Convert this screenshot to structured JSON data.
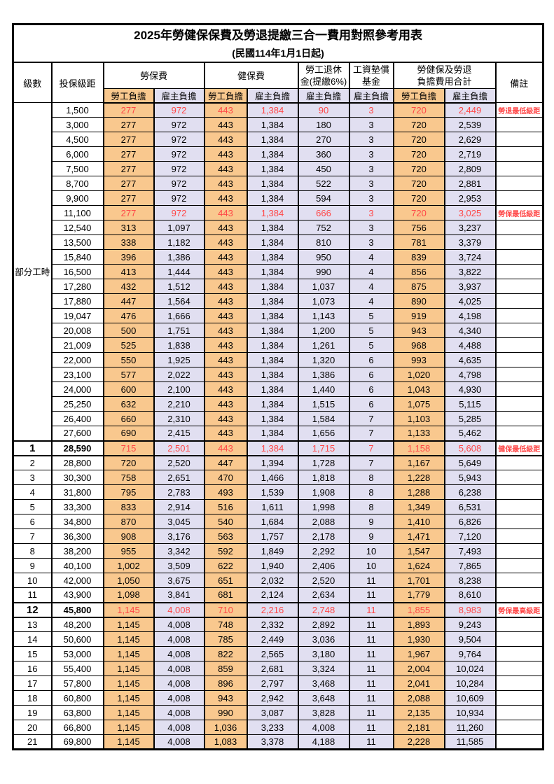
{
  "header": {
    "title": "2025年勞健保保費及勞退提繳三合一費用對照參考用表",
    "subtitle": "(民國114年1月1日起)"
  },
  "colors": {
    "employee_bg": "#F9C88E",
    "employer_bg": "#E1DFF1",
    "highlight_red": "#FF4747"
  },
  "table": {
    "columns": {
      "level": "級數",
      "bracket": "投保級距",
      "labor_fee": "勞保費",
      "health_fee": "健保費",
      "pension_line1": "勞工退休",
      "pension_line2": "金(提繳6%)",
      "wage_fund_line1": "工資墊償",
      "wage_fund_line2": "基金",
      "total_line1": "勞健保及勞退",
      "total_line2": "負擔費用合計",
      "note": "備註",
      "employee": "勞工負擔",
      "employer": "雇主負擔"
    },
    "part_time_label": "部分工時",
    "part_time_rowspan": 23,
    "rows": [
      {
        "level": "",
        "bracket": "1,500",
        "values": [
          "277",
          "972",
          "443",
          "1,384",
          "90",
          "3",
          "720",
          "2,449"
        ],
        "note": "勞退最低級距",
        "red": true
      },
      {
        "level": "",
        "bracket": "3,000",
        "values": [
          "277",
          "972",
          "443",
          "1,384",
          "180",
          "3",
          "720",
          "2,539"
        ]
      },
      {
        "level": "",
        "bracket": "4,500",
        "values": [
          "277",
          "972",
          "443",
          "1,384",
          "270",
          "3",
          "720",
          "2,629"
        ]
      },
      {
        "level": "",
        "bracket": "6,000",
        "values": [
          "277",
          "972",
          "443",
          "1,384",
          "360",
          "3",
          "720",
          "2,719"
        ]
      },
      {
        "level": "",
        "bracket": "7,500",
        "values": [
          "277",
          "972",
          "443",
          "1,384",
          "450",
          "3",
          "720",
          "2,809"
        ]
      },
      {
        "level": "",
        "bracket": "8,700",
        "values": [
          "277",
          "972",
          "443",
          "1,384",
          "522",
          "3",
          "720",
          "2,881"
        ]
      },
      {
        "level": "",
        "bracket": "9,900",
        "values": [
          "277",
          "972",
          "443",
          "1,384",
          "594",
          "3",
          "720",
          "2,953"
        ]
      },
      {
        "level": "",
        "bracket": "11,100",
        "values": [
          "277",
          "972",
          "443",
          "1,384",
          "666",
          "3",
          "720",
          "3,025"
        ],
        "note": "勞保最低級距",
        "red": true
      },
      {
        "level": "",
        "bracket": "12,540",
        "values": [
          "313",
          "1,097",
          "443",
          "1,384",
          "752",
          "3",
          "756",
          "3,237"
        ]
      },
      {
        "level": "",
        "bracket": "13,500",
        "values": [
          "338",
          "1,182",
          "443",
          "1,384",
          "810",
          "3",
          "781",
          "3,379"
        ]
      },
      {
        "level": "",
        "bracket": "15,840",
        "values": [
          "396",
          "1,386",
          "443",
          "1,384",
          "950",
          "4",
          "839",
          "3,724"
        ]
      },
      {
        "level": "",
        "bracket": "16,500",
        "values": [
          "413",
          "1,444",
          "443",
          "1,384",
          "990",
          "4",
          "856",
          "3,822"
        ]
      },
      {
        "level": "",
        "bracket": "17,280",
        "values": [
          "432",
          "1,512",
          "443",
          "1,384",
          "1,037",
          "4",
          "875",
          "3,937"
        ]
      },
      {
        "level": "",
        "bracket": "17,880",
        "values": [
          "447",
          "1,564",
          "443",
          "1,384",
          "1,073",
          "4",
          "890",
          "4,025"
        ]
      },
      {
        "level": "",
        "bracket": "19,047",
        "values": [
          "476",
          "1,666",
          "443",
          "1,384",
          "1,143",
          "5",
          "919",
          "4,198"
        ]
      },
      {
        "level": "",
        "bracket": "20,008",
        "values": [
          "500",
          "1,751",
          "443",
          "1,384",
          "1,200",
          "5",
          "943",
          "4,340"
        ]
      },
      {
        "level": "",
        "bracket": "21,009",
        "values": [
          "525",
          "1,838",
          "443",
          "1,384",
          "1,261",
          "5",
          "968",
          "4,488"
        ]
      },
      {
        "level": "",
        "bracket": "22,000",
        "values": [
          "550",
          "1,925",
          "443",
          "1,384",
          "1,320",
          "6",
          "993",
          "4,635"
        ]
      },
      {
        "level": "",
        "bracket": "23,100",
        "values": [
          "577",
          "2,022",
          "443",
          "1,384",
          "1,386",
          "6",
          "1,020",
          "4,798"
        ]
      },
      {
        "level": "",
        "bracket": "24,000",
        "values": [
          "600",
          "2,100",
          "443",
          "1,384",
          "1,440",
          "6",
          "1,043",
          "4,930"
        ]
      },
      {
        "level": "",
        "bracket": "25,250",
        "values": [
          "632",
          "2,210",
          "443",
          "1,384",
          "1,515",
          "6",
          "1,075",
          "5,115"
        ]
      },
      {
        "level": "",
        "bracket": "26,400",
        "values": [
          "660",
          "2,310",
          "443",
          "1,384",
          "1,584",
          "7",
          "1,103",
          "5,285"
        ]
      },
      {
        "level": "",
        "bracket": "27,600",
        "values": [
          "690",
          "2,415",
          "443",
          "1,384",
          "1,656",
          "7",
          "1,133",
          "5,462"
        ]
      },
      {
        "level": "1",
        "bracket": "28,590",
        "values": [
          "715",
          "2,501",
          "443",
          "1,384",
          "1,715",
          "7",
          "1,158",
          "5,608"
        ],
        "note": "健保最低級距",
        "red": true,
        "key": true
      },
      {
        "level": "2",
        "bracket": "28,800",
        "values": [
          "720",
          "2,520",
          "447",
          "1,394",
          "1,728",
          "7",
          "1,167",
          "5,649"
        ]
      },
      {
        "level": "3",
        "bracket": "30,300",
        "values": [
          "758",
          "2,651",
          "470",
          "1,466",
          "1,818",
          "8",
          "1,228",
          "5,943"
        ]
      },
      {
        "level": "4",
        "bracket": "31,800",
        "values": [
          "795",
          "2,783",
          "493",
          "1,539",
          "1,908",
          "8",
          "1,288",
          "6,238"
        ]
      },
      {
        "level": "5",
        "bracket": "33,300",
        "values": [
          "833",
          "2,914",
          "516",
          "1,611",
          "1,998",
          "8",
          "1,349",
          "6,531"
        ]
      },
      {
        "level": "6",
        "bracket": "34,800",
        "values": [
          "870",
          "3,045",
          "540",
          "1,684",
          "2,088",
          "9",
          "1,410",
          "6,826"
        ]
      },
      {
        "level": "7",
        "bracket": "36,300",
        "values": [
          "908",
          "3,176",
          "563",
          "1,757",
          "2,178",
          "9",
          "1,471",
          "7,120"
        ]
      },
      {
        "level": "8",
        "bracket": "38,200",
        "values": [
          "955",
          "3,342",
          "592",
          "1,849",
          "2,292",
          "10",
          "1,547",
          "7,493"
        ]
      },
      {
        "level": "9",
        "bracket": "40,100",
        "values": [
          "1,002",
          "3,509",
          "622",
          "1,940",
          "2,406",
          "10",
          "1,624",
          "7,865"
        ]
      },
      {
        "level": "10",
        "bracket": "42,000",
        "values": [
          "1,050",
          "3,675",
          "651",
          "2,032",
          "2,520",
          "11",
          "1,701",
          "8,238"
        ]
      },
      {
        "level": "11",
        "bracket": "43,900",
        "values": [
          "1,098",
          "3,841",
          "681",
          "2,124",
          "2,634",
          "11",
          "1,779",
          "8,610"
        ]
      },
      {
        "level": "12",
        "bracket": "45,800",
        "values": [
          "1,145",
          "4,008",
          "710",
          "2,216",
          "2,748",
          "11",
          "1,855",
          "8,983"
        ],
        "note": "勞保最高級距",
        "red": true,
        "key": true
      },
      {
        "level": "13",
        "bracket": "48,200",
        "values": [
          "1,145",
          "4,008",
          "748",
          "2,332",
          "2,892",
          "11",
          "1,893",
          "9,243"
        ]
      },
      {
        "level": "14",
        "bracket": "50,600",
        "values": [
          "1,145",
          "4,008",
          "785",
          "2,449",
          "3,036",
          "11",
          "1,930",
          "9,504"
        ]
      },
      {
        "level": "15",
        "bracket": "53,000",
        "values": [
          "1,145",
          "4,008",
          "822",
          "2,565",
          "3,180",
          "11",
          "1,967",
          "9,764"
        ]
      },
      {
        "level": "16",
        "bracket": "55,400",
        "values": [
          "1,145",
          "4,008",
          "859",
          "2,681",
          "3,324",
          "11",
          "2,004",
          "10,024"
        ]
      },
      {
        "level": "17",
        "bracket": "57,800",
        "values": [
          "1,145",
          "4,008",
          "896",
          "2,797",
          "3,468",
          "11",
          "2,041",
          "10,284"
        ]
      },
      {
        "level": "18",
        "bracket": "60,800",
        "values": [
          "1,145",
          "4,008",
          "943",
          "2,942",
          "3,648",
          "11",
          "2,088",
          "10,609"
        ]
      },
      {
        "level": "19",
        "bracket": "63,800",
        "values": [
          "1,145",
          "4,008",
          "990",
          "3,087",
          "3,828",
          "11",
          "2,135",
          "10,934"
        ]
      },
      {
        "level": "20",
        "bracket": "66,800",
        "values": [
          "1,145",
          "4,008",
          "1,036",
          "3,233",
          "4,008",
          "11",
          "2,181",
          "11,260"
        ]
      },
      {
        "level": "21",
        "bracket": "69,800",
        "values": [
          "1,145",
          "4,008",
          "1,083",
          "3,378",
          "4,188",
          "11",
          "2,228",
          "11,585"
        ]
      }
    ]
  }
}
